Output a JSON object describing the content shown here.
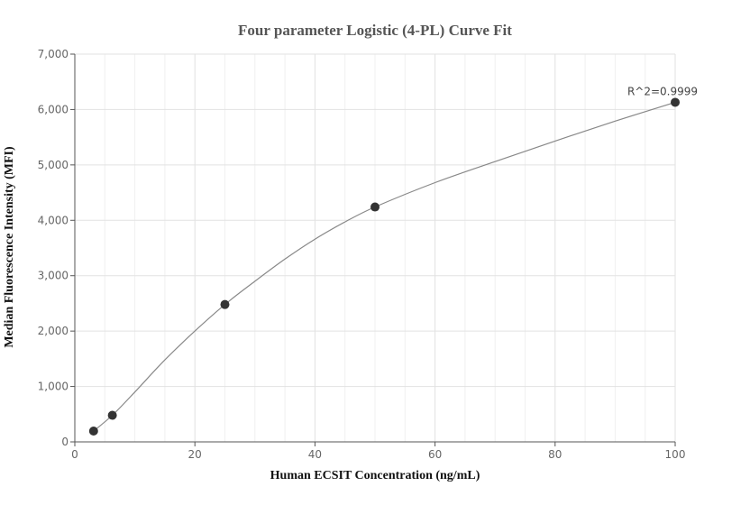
{
  "chart_data": {
    "type": "scatter",
    "title": "Four parameter Logistic (4-PL) Curve Fit",
    "xlabel": "Human ECSIT Concentration (ng/mL)",
    "ylabel": "Median Fluorescence Intensity (MFI)",
    "xlim": [
      0,
      100
    ],
    "ylim": [
      0,
      7000
    ],
    "x_ticks": [
      0,
      20,
      40,
      60,
      80,
      100
    ],
    "y_ticks": [
      0,
      1000,
      2000,
      3000,
      4000,
      5000,
      6000,
      7000
    ],
    "x_tick_labels": [
      "0",
      "20",
      "40",
      "60",
      "80",
      "100"
    ],
    "y_tick_labels": [
      "0",
      "1,000",
      "2,000",
      "3,000",
      "4,000",
      "5,000",
      "6,000",
      "7,000"
    ],
    "grid": true,
    "series": [
      {
        "points": [
          {
            "x": 3.125,
            "y": 195
          },
          {
            "x": 6.25,
            "y": 480
          },
          {
            "x": 25,
            "y": 2480
          },
          {
            "x": 50,
            "y": 4240
          },
          {
            "x": 100,
            "y": 6130
          }
        ],
        "color": "#333333"
      }
    ],
    "fit_curve": {
      "model": "4PL",
      "color": "#888888",
      "points": [
        {
          "x": 3.125,
          "y": 195
        },
        {
          "x": 6.25,
          "y": 480
        },
        {
          "x": 10,
          "y": 900
        },
        {
          "x": 15,
          "y": 1480
        },
        {
          "x": 20,
          "y": 2000
        },
        {
          "x": 25,
          "y": 2480
        },
        {
          "x": 30,
          "y": 2900
        },
        {
          "x": 35,
          "y": 3300
        },
        {
          "x": 40,
          "y": 3660
        },
        {
          "x": 45,
          "y": 3970
        },
        {
          "x": 50,
          "y": 4240
        },
        {
          "x": 60,
          "y": 4680
        },
        {
          "x": 70,
          "y": 5060
        },
        {
          "x": 80,
          "y": 5430
        },
        {
          "x": 90,
          "y": 5790
        },
        {
          "x": 100,
          "y": 6130
        }
      ]
    },
    "annotations": [
      {
        "text": "R^2=0.9999",
        "x": 100,
        "y": 6130
      }
    ]
  }
}
